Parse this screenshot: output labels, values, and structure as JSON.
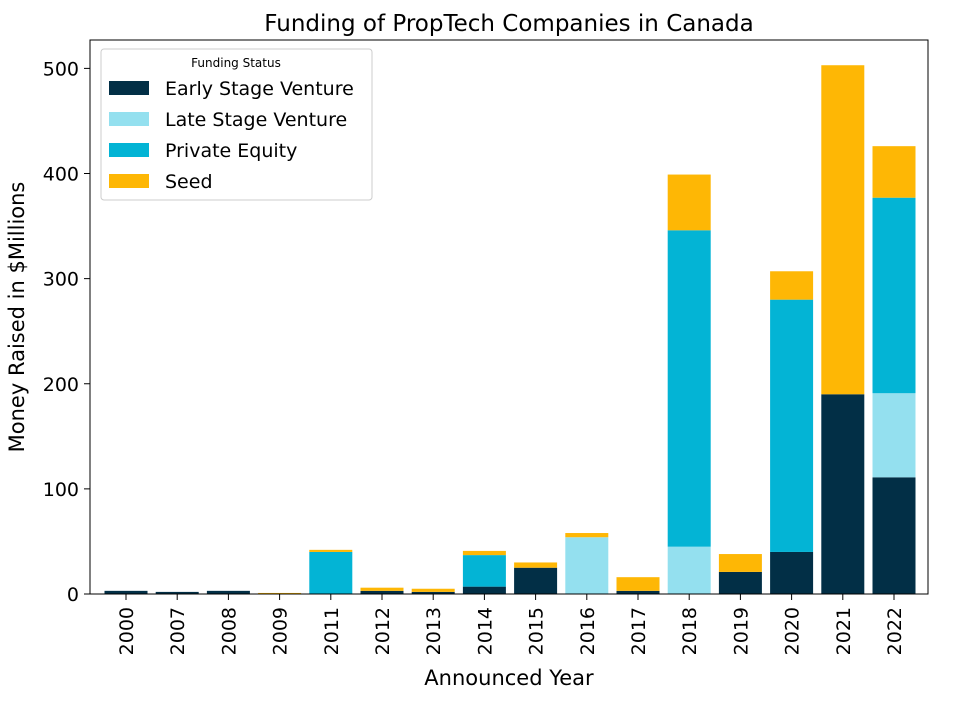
{
  "chart_data": {
    "type": "bar",
    "stacked": true,
    "title": "Funding of PropTech Companies in Canada",
    "xlabel": "Announced Year",
    "ylabel": "Money Raised in $Millions",
    "ylim": [
      0,
      527
    ],
    "yticks": [
      0,
      100,
      200,
      300,
      400,
      500
    ],
    "grid": false,
    "legend": {
      "title": "Funding Status",
      "placement": "top-left"
    },
    "categories": [
      "2000",
      "2007",
      "2008",
      "2009",
      "2011",
      "2012",
      "2013",
      "2014",
      "2015",
      "2016",
      "2017",
      "2018",
      "2019",
      "2020",
      "2021",
      "2022"
    ],
    "series": [
      {
        "name": "Early Stage Venture",
        "color": "#022f46",
        "values": [
          3,
          2,
          3,
          0,
          0,
          3,
          2,
          7,
          25,
          0,
          3,
          0,
          21,
          40,
          190,
          111
        ]
      },
      {
        "name": "Late Stage Venture",
        "color": "#94e0ef",
        "values": [
          0,
          0,
          0,
          0,
          0,
          0,
          0,
          0,
          0,
          54,
          0,
          45,
          0,
          0,
          0,
          80
        ]
      },
      {
        "name": "Private Equity",
        "color": "#03b4d5",
        "values": [
          0,
          0,
          0,
          0,
          40,
          0,
          0,
          30,
          0,
          0,
          0,
          301,
          0,
          240,
          0,
          186
        ]
      },
      {
        "name": "Seed",
        "color": "#feb705",
        "values": [
          0,
          0,
          0,
          1,
          2,
          3,
          3,
          4,
          5,
          4,
          13,
          53,
          17,
          27,
          313,
          49
        ]
      }
    ]
  }
}
